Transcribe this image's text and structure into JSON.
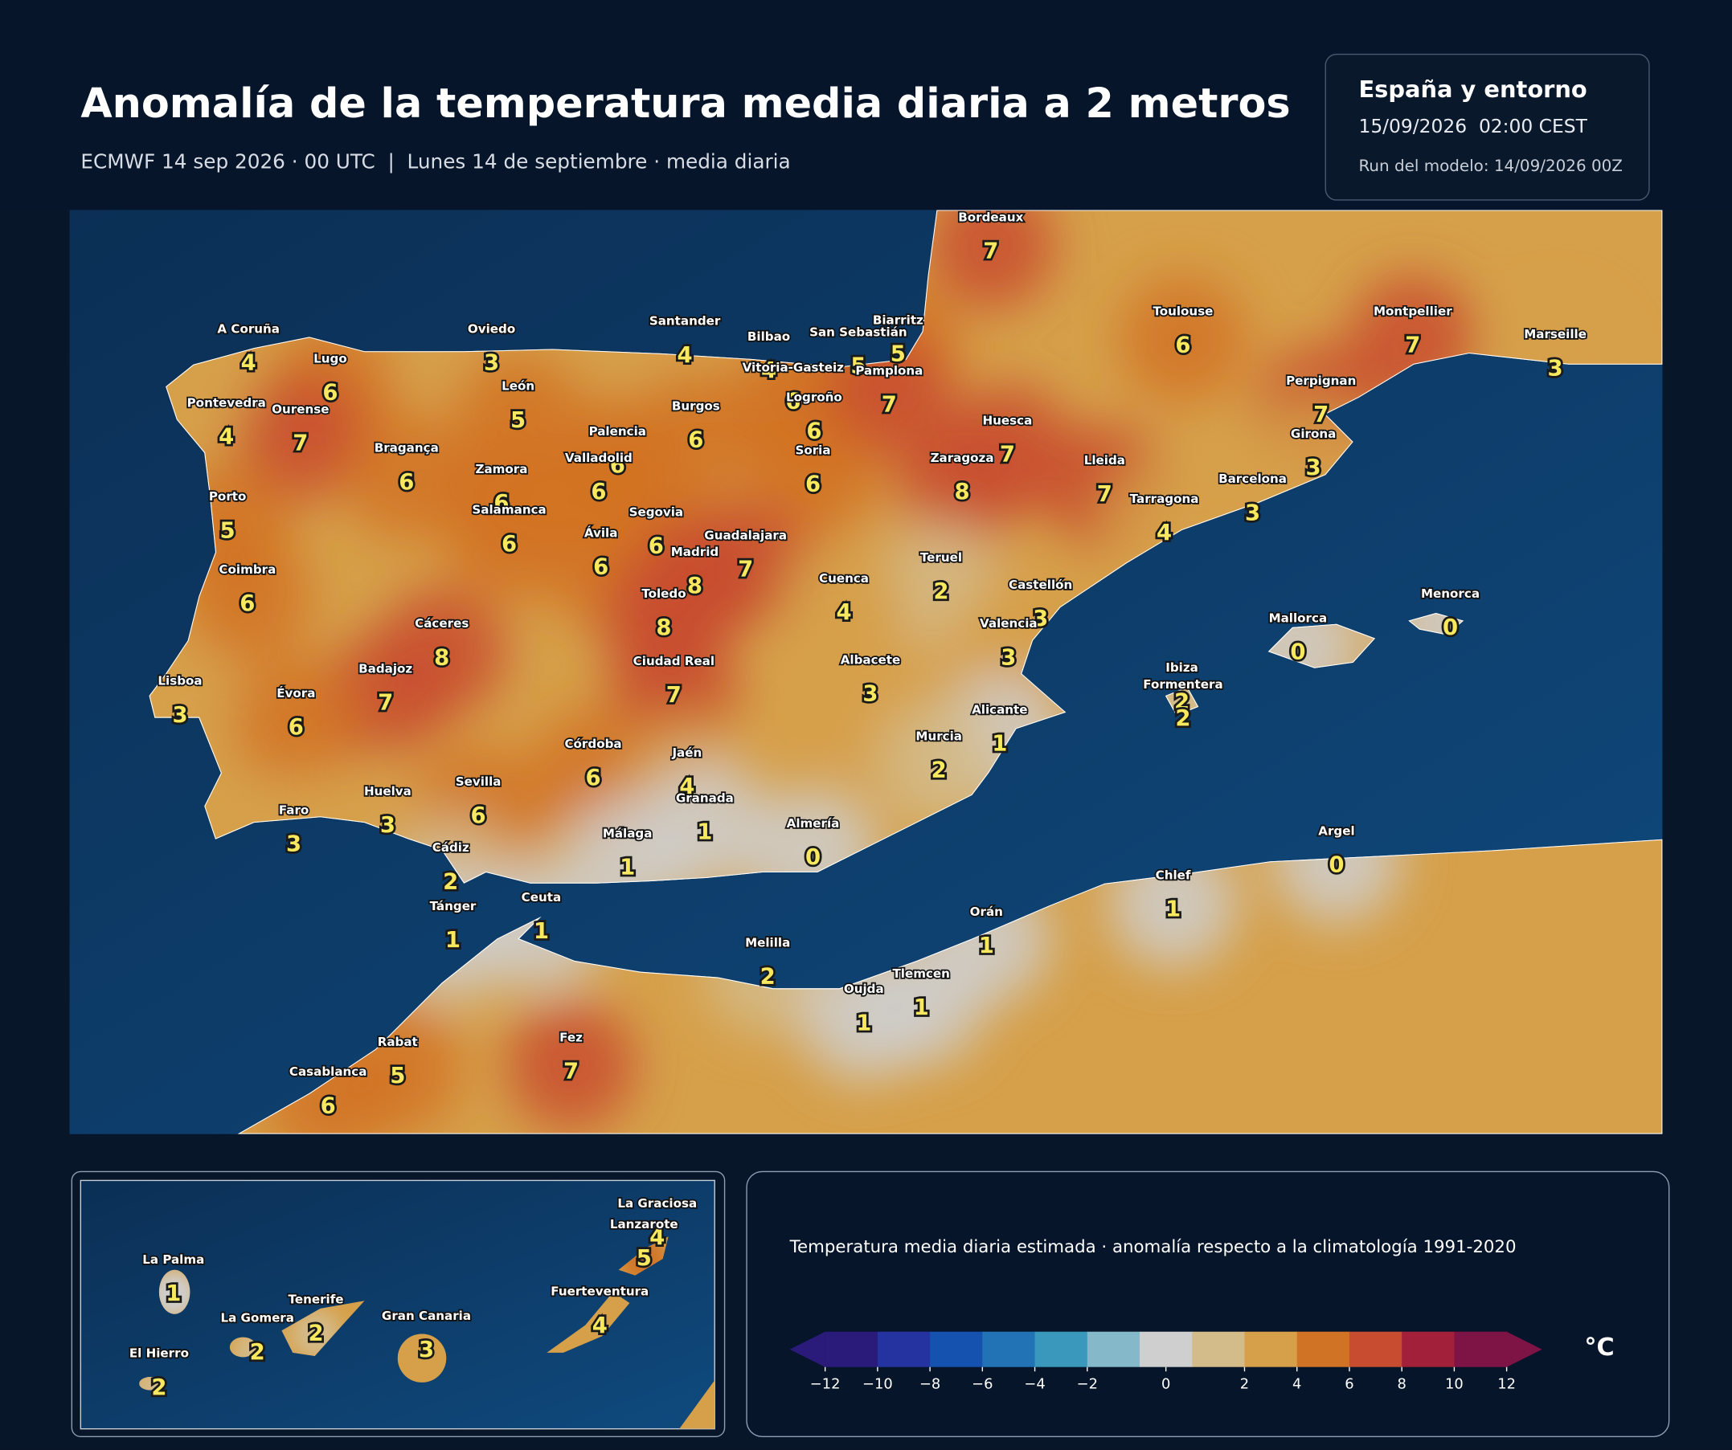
{
  "header": {
    "title": "Anomalía de la temperatura media diaria a 2 metros",
    "subtitle": "ECMWF 14 sep 2026 · 00 UTC  |  Lunes 14 de septiembre · media diaria"
  },
  "info": {
    "region": "España y entorno",
    "valid": "15/09/2026  02:00 CEST",
    "run": "Run del modelo: 14/09/2026 00Z"
  },
  "map": {
    "cities": [
      {
        "name": "Bordeaux",
        "value": 7
      },
      {
        "name": "Toulouse",
        "value": 6
      },
      {
        "name": "Montpellier",
        "value": 7
      },
      {
        "name": "Marseille",
        "value": 3
      },
      {
        "name": "A Coruña",
        "value": 4
      },
      {
        "name": "Oviedo",
        "value": 3
      },
      {
        "name": "Santander",
        "value": 4
      },
      {
        "name": "Bilbao",
        "value": 4
      },
      {
        "name": "San Sebastián",
        "value": 5
      },
      {
        "name": "Biarritz",
        "value": 5
      },
      {
        "name": "Lugo",
        "value": 6
      },
      {
        "name": "Vitoria-Gasteiz",
        "value": 6
      },
      {
        "name": "Logroño",
        "value": 6
      },
      {
        "name": "Pamplona",
        "value": 7
      },
      {
        "name": "León",
        "value": 5
      },
      {
        "name": "Pontevedra",
        "value": 4
      },
      {
        "name": "Ourense",
        "value": 7
      },
      {
        "name": "Burgos",
        "value": 6
      },
      {
        "name": "Huesca",
        "value": 7
      },
      {
        "name": "Perpignan",
        "value": 7
      },
      {
        "name": "Palencia",
        "value": 6
      },
      {
        "name": "Girona",
        "value": 3
      },
      {
        "name": "Bragança",
        "value": 6
      },
      {
        "name": "Soria",
        "value": 6
      },
      {
        "name": "Valladolid",
        "value": 6
      },
      {
        "name": "Zaragoza",
        "value": 8
      },
      {
        "name": "Lleida",
        "value": 7
      },
      {
        "name": "Zamora",
        "value": 6
      },
      {
        "name": "Barcelona",
        "value": 3
      },
      {
        "name": "Porto",
        "value": 5
      },
      {
        "name": "Tarragona",
        "value": 4
      },
      {
        "name": "Salamanca",
        "value": 6
      },
      {
        "name": "Segovia",
        "value": 6
      },
      {
        "name": "Ávila",
        "value": 6
      },
      {
        "name": "Guadalajara",
        "value": 7
      },
      {
        "name": "Madrid",
        "value": 8
      },
      {
        "name": "Teruel",
        "value": 2
      },
      {
        "name": "Coimbra",
        "value": 6
      },
      {
        "name": "Cuenca",
        "value": 4
      },
      {
        "name": "Castellón",
        "value": 3
      },
      {
        "name": "Toledo",
        "value": 8
      },
      {
        "name": "Cáceres",
        "value": 8
      },
      {
        "name": "Valencia",
        "value": 3
      },
      {
        "name": "Ciudad Real",
        "value": 7
      },
      {
        "name": "Albacete",
        "value": 3
      },
      {
        "name": "Badajoz",
        "value": 7
      },
      {
        "name": "Lisboa",
        "value": 3
      },
      {
        "name": "Évora",
        "value": 6
      },
      {
        "name": "Alicante",
        "value": 1
      },
      {
        "name": "Murcia",
        "value": 2
      },
      {
        "name": "Córdoba",
        "value": 6
      },
      {
        "name": "Jaén",
        "value": 4
      },
      {
        "name": "Huelva",
        "value": 3
      },
      {
        "name": "Sevilla",
        "value": 6
      },
      {
        "name": "Granada",
        "value": 1
      },
      {
        "name": "Faro",
        "value": 3
      },
      {
        "name": "Almería",
        "value": 0
      },
      {
        "name": "Málaga",
        "value": 1
      },
      {
        "name": "Cádiz",
        "value": 2
      },
      {
        "name": "Tánger",
        "value": 1
      },
      {
        "name": "Ceuta",
        "value": 1
      },
      {
        "name": "Melilla",
        "value": 2
      },
      {
        "name": "Oujda",
        "value": 1
      },
      {
        "name": "Tlemcen",
        "value": 1
      },
      {
        "name": "Orán",
        "value": 1
      },
      {
        "name": "Chlef",
        "value": 1
      },
      {
        "name": "Argel",
        "value": 0
      },
      {
        "name": "Rabat",
        "value": 5
      },
      {
        "name": "Fez",
        "value": 7
      },
      {
        "name": "Casablanca",
        "value": 6
      },
      {
        "name": "Mallorca",
        "value": 0
      },
      {
        "name": "Menorca",
        "value": 0
      },
      {
        "name": "Ibiza",
        "value": 2
      },
      {
        "name": "Formentera",
        "value": 2
      }
    ]
  },
  "inset": {
    "islands": [
      {
        "name": "La Graciosa",
        "value": 4
      },
      {
        "name": "Lanzarote",
        "value": 5
      },
      {
        "name": "La Palma",
        "value": 1
      },
      {
        "name": "Tenerife",
        "value": 2
      },
      {
        "name": "Fuerteventura",
        "value": 4
      },
      {
        "name": "La Gomera",
        "value": 2
      },
      {
        "name": "Gran Canaria",
        "value": 3
      },
      {
        "name": "El Hierro",
        "value": 2
      }
    ]
  },
  "legend": {
    "caption": "Temperatura media diaria estimada · anomalía respecto a la climatología 1991-2020",
    "unit": "°C",
    "levels": [
      -12,
      -10,
      -8,
      -6,
      -4,
      -2,
      -1,
      1,
      2,
      4,
      6,
      8,
      10,
      12
    ],
    "colors": [
      "#2a1a7a",
      "#2433a0",
      "#1552b0",
      "#2273b5",
      "#3a98bd",
      "#85b9c9",
      "#cfcfcf",
      "#d4bb8a",
      "#d6a04a",
      "#d17325",
      "#c84c30",
      "#a3203a",
      "#7d1445"
    ],
    "under_color": "#2a1a7a",
    "over_color": "#7d1445",
    "ticks": [
      {
        "value": -12,
        "label": "−12"
      },
      {
        "value": -10,
        "label": "−10"
      },
      {
        "value": -8,
        "label": "−8"
      },
      {
        "value": -6,
        "label": "−6"
      },
      {
        "value": -4,
        "label": "−4"
      },
      {
        "value": -2,
        "label": "−2"
      },
      0,
      2,
      4,
      6,
      8,
      10,
      12
    ]
  }
}
